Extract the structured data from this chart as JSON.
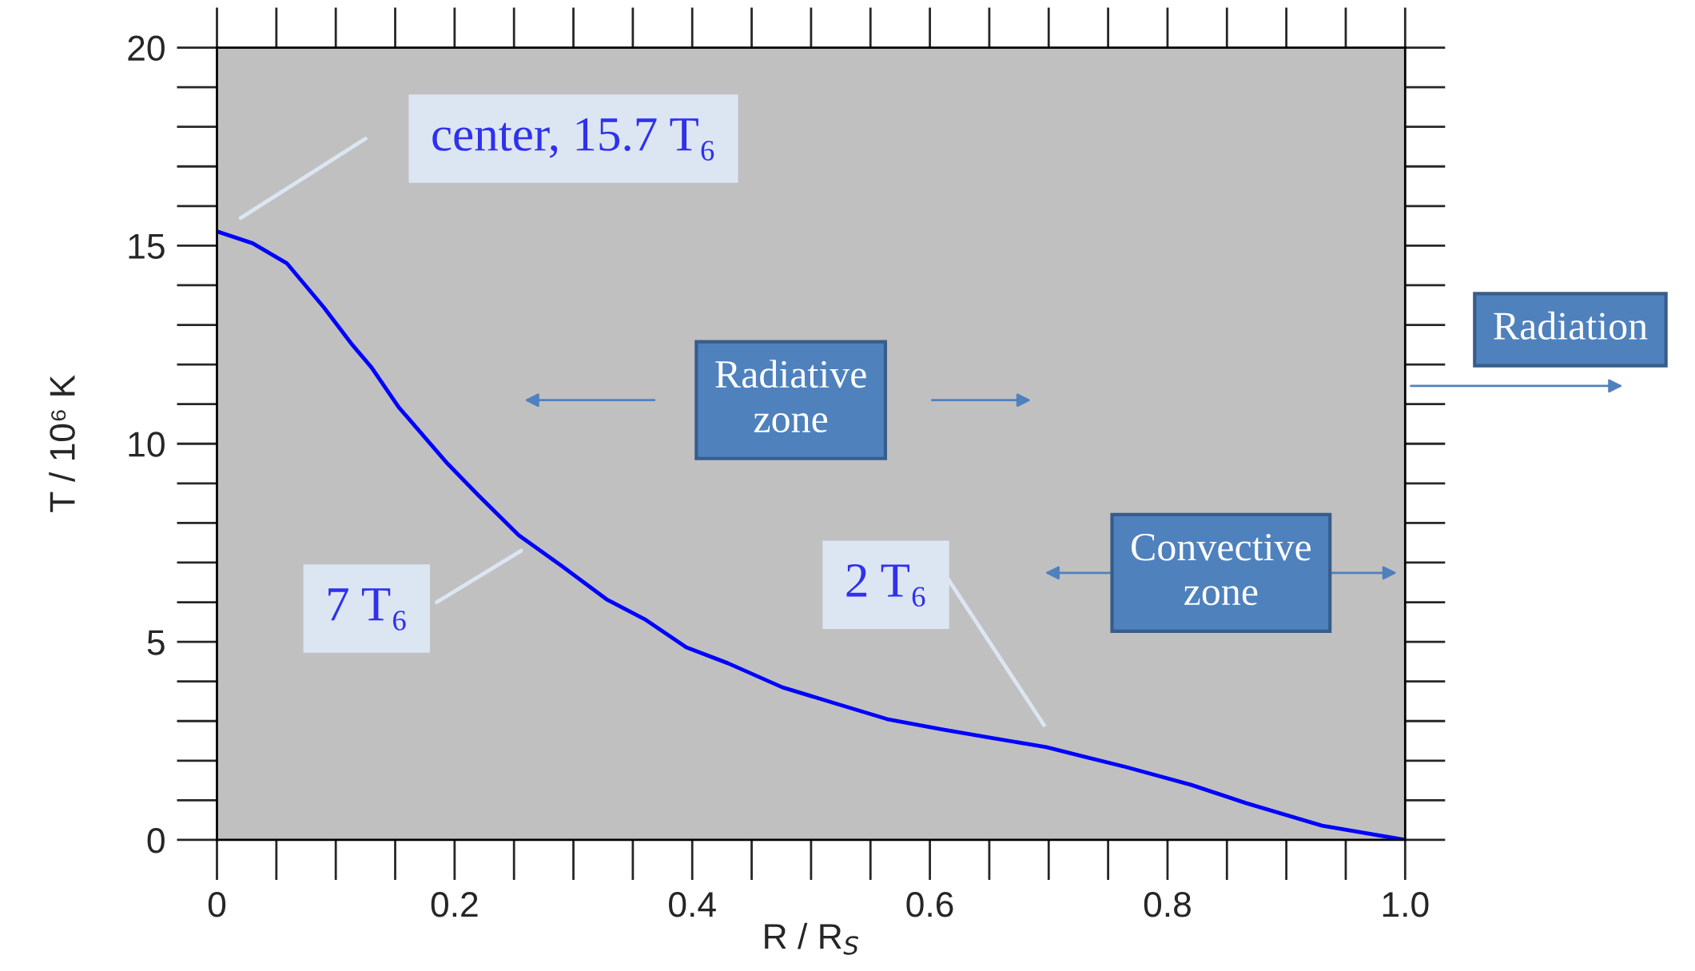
{
  "chart_data": {
    "type": "line",
    "xlabel": "R / R$_{S}$",
    "ylabel": "T / 10⁶ K",
    "x": [
      0,
      0.03,
      0.059,
      0.09,
      0.113,
      0.13,
      0.153,
      0.194,
      0.22,
      0.254,
      0.29,
      0.328,
      0.36,
      0.395,
      0.43,
      0.476,
      0.52,
      0.564,
      0.61,
      0.651,
      0.698,
      0.73,
      0.765,
      0.82,
      0.866,
      0.93,
      1.0
    ],
    "series": [
      {
        "color": "#0000ff",
        "values": [
          15.36,
          15.06,
          14.55,
          13.44,
          12.53,
          11.93,
          10.92,
          9.5,
          8.7,
          7.69,
          6.92,
          6.07,
          5.57,
          4.86,
          4.46,
          3.85,
          3.45,
          3.05,
          2.79,
          2.58,
          2.34,
          2.1,
          1.84,
          1.39,
          0.93,
          0.36,
          0
        ]
      }
    ],
    "xlim": [
      0,
      1.0
    ],
    "ylim": [
      0,
      20
    ],
    "xticks": [
      0,
      0.2,
      0.4,
      0.6,
      0.8,
      {
        "value": 1.0,
        "label": "1.0"
      }
    ],
    "yticks": [
      0,
      5,
      10,
      15,
      20
    ],
    "grid": false,
    "legend": false,
    "marker": "none",
    "line_style": "solid",
    "annotations": [
      "center, 15.7 T₆",
      "7 T₆",
      "2 T₆",
      "Radiative\nzone",
      "Convective\nzone",
      "Radiation"
    ]
  }
}
